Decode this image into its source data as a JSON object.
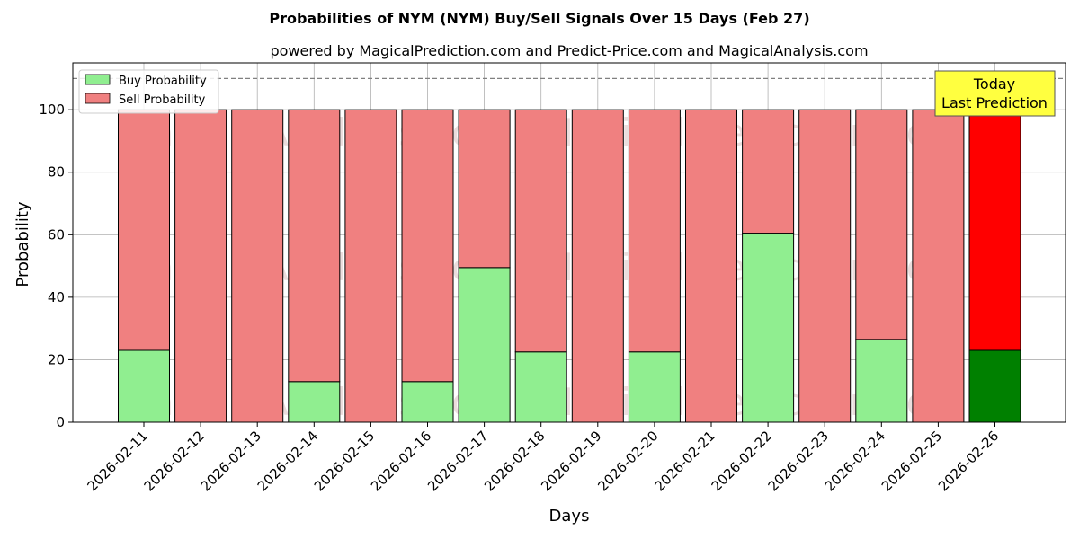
{
  "chart_data": {
    "type": "bar",
    "stacked": true,
    "title": "Probabilities of NYM (NYM) Buy/Sell Signals Over 15 Days (Feb 27)",
    "subtitle": "powered by MagicalPrediction.com and Predict-Price.com and MagicalAnalysis.com",
    "xlabel": "Days",
    "ylabel": "Probability",
    "ylim": [
      0,
      115
    ],
    "yticks": [
      0,
      20,
      40,
      60,
      80,
      100
    ],
    "grid": true,
    "legend_position": "top-left",
    "reference_line": 110,
    "categories": [
      "2026-02-11",
      "2026-02-12",
      "2026-02-13",
      "2026-02-14",
      "2026-02-15",
      "2026-02-16",
      "2026-02-17",
      "2026-02-18",
      "2026-02-19",
      "2026-02-20",
      "2026-02-21",
      "2026-02-22",
      "2026-02-23",
      "2026-02-24",
      "2026-02-25",
      "2026-02-26"
    ],
    "series": [
      {
        "name": "Buy Probability",
        "color": "#90ee90",
        "highlight_color": "#008000",
        "values": [
          23,
          0,
          0,
          13,
          0,
          13,
          49.5,
          22.5,
          0,
          22.5,
          0,
          60.5,
          0,
          26.5,
          0,
          23
        ]
      },
      {
        "name": "Sell Probability",
        "color": "#f08080",
        "highlight_color": "#ff0000",
        "values": [
          77,
          100,
          100,
          87,
          100,
          87,
          50.5,
          77.5,
          100,
          77.5,
          100,
          39.5,
          100,
          73.5,
          100,
          77
        ]
      }
    ],
    "highlight_index": 15,
    "annotation": {
      "line1": "Today",
      "line2": "Last Prediction",
      "background": "#ffff40"
    },
    "watermarks": [
      "MagicalAnalysis.com",
      "MagicalPrediction.com"
    ]
  }
}
